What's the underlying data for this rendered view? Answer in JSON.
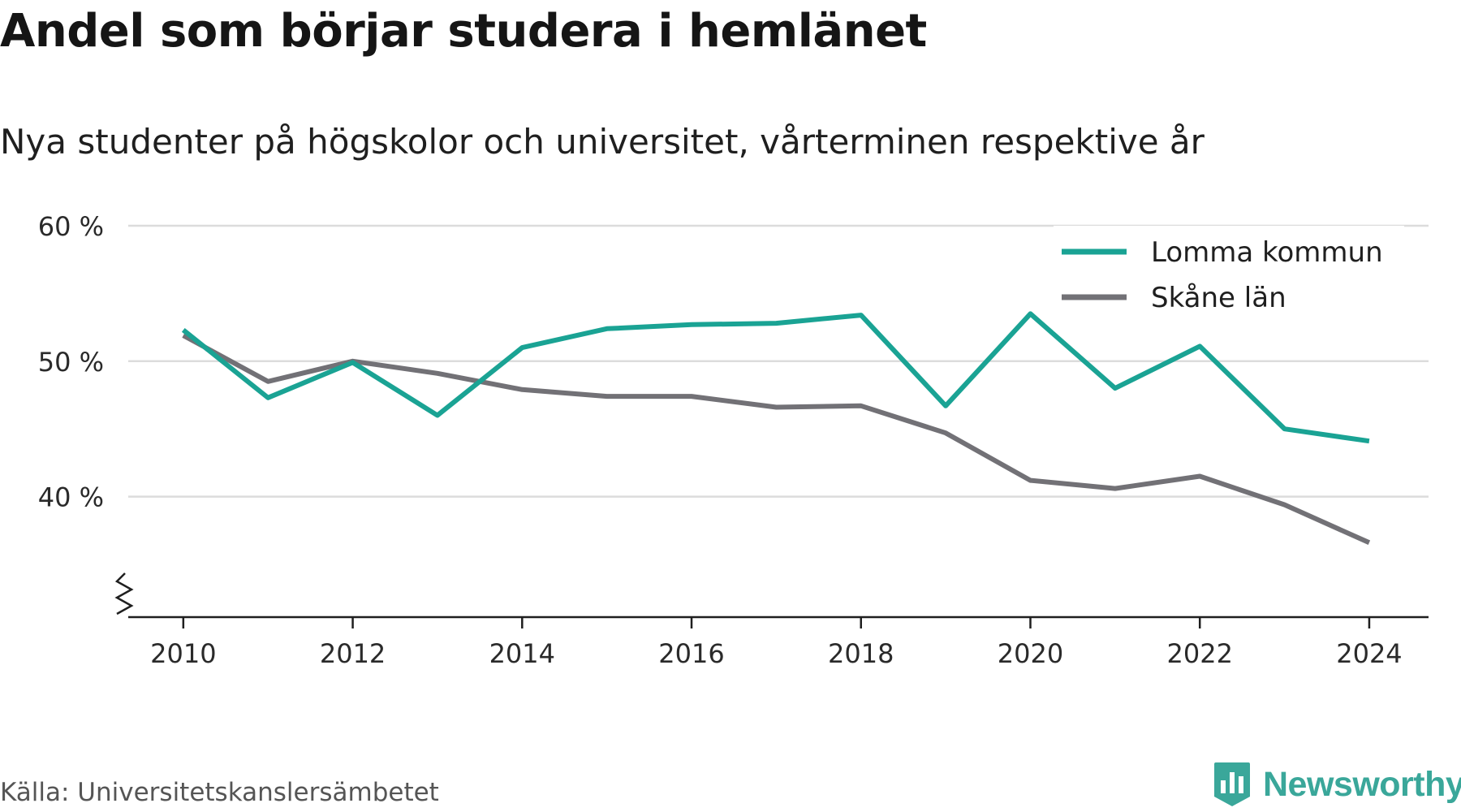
{
  "header": {
    "title": "Andel som börjar studera i hemlänet",
    "subtitle": "Nya studenter på högskolor och universitet, vårterminen respektive år"
  },
  "footer": {
    "source": "Källa: Universitetskanslersämbetet",
    "brand": "Newsworthy",
    "brand_icon": "newsworthy-logo-icon"
  },
  "colors": {
    "lomma": "#1aa394",
    "skane": "#727176",
    "grid": "#dcdcdc",
    "axis": "#1f1f1f",
    "brand": "#3aa79a"
  },
  "chart_data": {
    "type": "line",
    "x": [
      2010,
      2011,
      2012,
      2013,
      2014,
      2015,
      2016,
      2017,
      2018,
      2019,
      2020,
      2021,
      2022,
      2023,
      2024
    ],
    "series": [
      {
        "name": "Lomma kommun",
        "color": "#1aa394",
        "values": [
          52.3,
          47.3,
          49.9,
          46.0,
          51.0,
          52.4,
          52.7,
          52.8,
          53.4,
          46.7,
          53.5,
          48.0,
          51.1,
          45.0,
          44.1
        ]
      },
      {
        "name": "Skåne län",
        "color": "#727176",
        "values": [
          51.9,
          48.5,
          50.0,
          49.1,
          47.9,
          47.4,
          47.4,
          46.6,
          46.7,
          44.7,
          41.2,
          40.6,
          41.5,
          39.4,
          36.6
        ]
      }
    ],
    "y_ticks": [
      40,
      50,
      60
    ],
    "y_tick_labels": [
      "40 %",
      "50 %",
      "60 %"
    ],
    "x_ticks": [
      2010,
      2012,
      2014,
      2016,
      2018,
      2020,
      2022,
      2024
    ],
    "x_tick_labels": [
      "2010",
      "2012",
      "2014",
      "2016",
      "2018",
      "2020",
      "2022",
      "2024"
    ],
    "ylim": [
      31.1,
      60
    ],
    "xlim": [
      2009.35,
      2024.7
    ],
    "y_axis_break": true,
    "grid": true,
    "legend": "top-right"
  }
}
